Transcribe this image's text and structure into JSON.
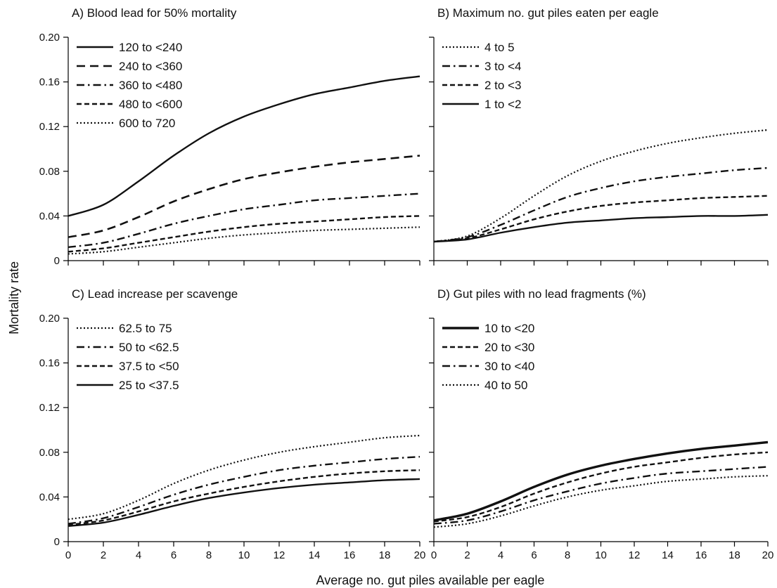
{
  "figure": {
    "ylabel": "Mortality rate",
    "xlabel": "Average no. gut piles available per eagle"
  },
  "chart_data": [
    {
      "type": "line",
      "id": "A",
      "title": "A) Blood lead for 50% mortality",
      "xlim": [
        0,
        20
      ],
      "ylim": [
        0,
        0.2
      ],
      "xticks": [
        0,
        2,
        4,
        6,
        8,
        10,
        12,
        14,
        16,
        18,
        20
      ],
      "xtick_labels": [],
      "yticks": [
        0,
        0.04,
        0.08,
        0.12,
        0.16,
        0.2
      ],
      "ytick_labels": [
        "0",
        "0.04",
        "0.08",
        "0.12",
        "0.16",
        "0.20"
      ],
      "legend_position": "top-left",
      "x": [
        0,
        2,
        4,
        6,
        8,
        10,
        12,
        14,
        16,
        18,
        20
      ],
      "series": [
        {
          "name": "120 to <240",
          "style": "solid",
          "values": [
            0.04,
            0.05,
            0.071,
            0.094,
            0.114,
            0.129,
            0.14,
            0.149,
            0.155,
            0.161,
            0.165
          ]
        },
        {
          "name": "240 to <360",
          "style": "dash",
          "values": [
            0.021,
            0.027,
            0.039,
            0.053,
            0.064,
            0.073,
            0.079,
            0.084,
            0.088,
            0.091,
            0.094
          ]
        },
        {
          "name": "360 to <480",
          "style": "dashdot",
          "values": [
            0.012,
            0.016,
            0.024,
            0.033,
            0.04,
            0.046,
            0.05,
            0.054,
            0.056,
            0.058,
            0.06
          ]
        },
        {
          "name": "480 to <600",
          "style": "shortdash",
          "values": [
            0.008,
            0.011,
            0.016,
            0.021,
            0.026,
            0.03,
            0.033,
            0.035,
            0.037,
            0.039,
            0.04
          ]
        },
        {
          "name": "600 to 720",
          "style": "dot",
          "values": [
            0.006,
            0.008,
            0.012,
            0.016,
            0.02,
            0.023,
            0.025,
            0.027,
            0.028,
            0.029,
            0.03
          ]
        }
      ]
    },
    {
      "type": "line",
      "id": "B",
      "title": "B) Maximum no. gut piles eaten per eagle",
      "xlim": [
        0,
        20
      ],
      "ylim": [
        0,
        0.2
      ],
      "xticks": [
        0,
        2,
        4,
        6,
        8,
        10,
        12,
        14,
        16,
        18,
        20
      ],
      "xtick_labels": [],
      "yticks": [
        0,
        0.04,
        0.08,
        0.12,
        0.16,
        0.2
      ],
      "ytick_labels": [],
      "legend_position": "top-left",
      "x": [
        0,
        2,
        4,
        6,
        8,
        10,
        12,
        14,
        16,
        18,
        20
      ],
      "series": [
        {
          "name": "4 to 5",
          "style": "dot",
          "values": [
            0.017,
            0.022,
            0.038,
            0.058,
            0.076,
            0.089,
            0.098,
            0.105,
            0.11,
            0.114,
            0.117
          ]
        },
        {
          "name": "3 to <4",
          "style": "dashdot",
          "values": [
            0.017,
            0.021,
            0.032,
            0.045,
            0.057,
            0.065,
            0.071,
            0.075,
            0.078,
            0.081,
            0.083
          ]
        },
        {
          "name": "2 to <3",
          "style": "shortdash",
          "values": [
            0.017,
            0.02,
            0.028,
            0.037,
            0.044,
            0.049,
            0.052,
            0.054,
            0.056,
            0.057,
            0.058
          ]
        },
        {
          "name": "1 to <2",
          "style": "solid",
          "values": [
            0.017,
            0.019,
            0.025,
            0.03,
            0.034,
            0.036,
            0.038,
            0.039,
            0.04,
            0.04,
            0.041
          ]
        }
      ]
    },
    {
      "type": "line",
      "id": "C",
      "title": "C) Lead increase per scavenge",
      "xlim": [
        0,
        20
      ],
      "ylim": [
        0,
        0.2
      ],
      "xticks": [
        0,
        2,
        4,
        6,
        8,
        10,
        12,
        14,
        16,
        18,
        20
      ],
      "xtick_labels": [
        "0",
        "2",
        "4",
        "6",
        "8",
        "10",
        "12",
        "14",
        "16",
        "18",
        "20"
      ],
      "yticks": [
        0,
        0.04,
        0.08,
        0.12,
        0.16,
        0.2
      ],
      "ytick_labels": [
        "0",
        "0.04",
        "0.08",
        "0.12",
        "0.16",
        "0.20"
      ],
      "legend_position": "top-left",
      "x": [
        0,
        2,
        4,
        6,
        8,
        10,
        12,
        14,
        16,
        18,
        20
      ],
      "series": [
        {
          "name": "62.5 to 75",
          "style": "dot",
          "values": [
            0.02,
            0.025,
            0.037,
            0.052,
            0.064,
            0.073,
            0.08,
            0.085,
            0.089,
            0.093,
            0.095
          ]
        },
        {
          "name": "50 to <62.5",
          "style": "dashdot",
          "values": [
            0.016,
            0.021,
            0.031,
            0.042,
            0.051,
            0.058,
            0.064,
            0.068,
            0.071,
            0.074,
            0.076
          ]
        },
        {
          "name": "37.5 to <50",
          "style": "shortdash",
          "values": [
            0.015,
            0.019,
            0.027,
            0.036,
            0.043,
            0.049,
            0.054,
            0.058,
            0.061,
            0.063,
            0.064
          ]
        },
        {
          "name": "25 to <37.5",
          "style": "solid",
          "values": [
            0.014,
            0.017,
            0.024,
            0.032,
            0.039,
            0.044,
            0.048,
            0.051,
            0.053,
            0.055,
            0.056
          ]
        }
      ]
    },
    {
      "type": "line",
      "id": "D",
      "title": "D) Gut piles with no lead fragments (%)",
      "xlim": [
        0,
        20
      ],
      "ylim": [
        0,
        0.2
      ],
      "xticks": [
        0,
        2,
        4,
        6,
        8,
        10,
        12,
        14,
        16,
        18,
        20
      ],
      "xtick_labels": [
        "0",
        "2",
        "4",
        "6",
        "8",
        "10",
        "12",
        "14",
        "16",
        "18",
        "20"
      ],
      "yticks": [
        0,
        0.04,
        0.08,
        0.12,
        0.16,
        0.2
      ],
      "ytick_labels": [],
      "legend_position": "top-left",
      "x": [
        0,
        2,
        4,
        6,
        8,
        10,
        12,
        14,
        16,
        18,
        20
      ],
      "series": [
        {
          "name": "10 to <20",
          "style": "thick",
          "values": [
            0.019,
            0.025,
            0.036,
            0.049,
            0.06,
            0.068,
            0.074,
            0.079,
            0.083,
            0.086,
            0.089
          ]
        },
        {
          "name": "20 to <30",
          "style": "shortdash",
          "values": [
            0.018,
            0.022,
            0.031,
            0.043,
            0.053,
            0.061,
            0.067,
            0.071,
            0.075,
            0.078,
            0.08
          ]
        },
        {
          "name": "30 to <40",
          "style": "dashdot",
          "values": [
            0.016,
            0.019,
            0.027,
            0.037,
            0.045,
            0.052,
            0.057,
            0.061,
            0.063,
            0.065,
            0.067
          ]
        },
        {
          "name": "40 to 50",
          "style": "dot",
          "values": [
            0.013,
            0.016,
            0.023,
            0.032,
            0.04,
            0.046,
            0.05,
            0.054,
            0.056,
            0.058,
            0.059
          ]
        }
      ]
    }
  ]
}
